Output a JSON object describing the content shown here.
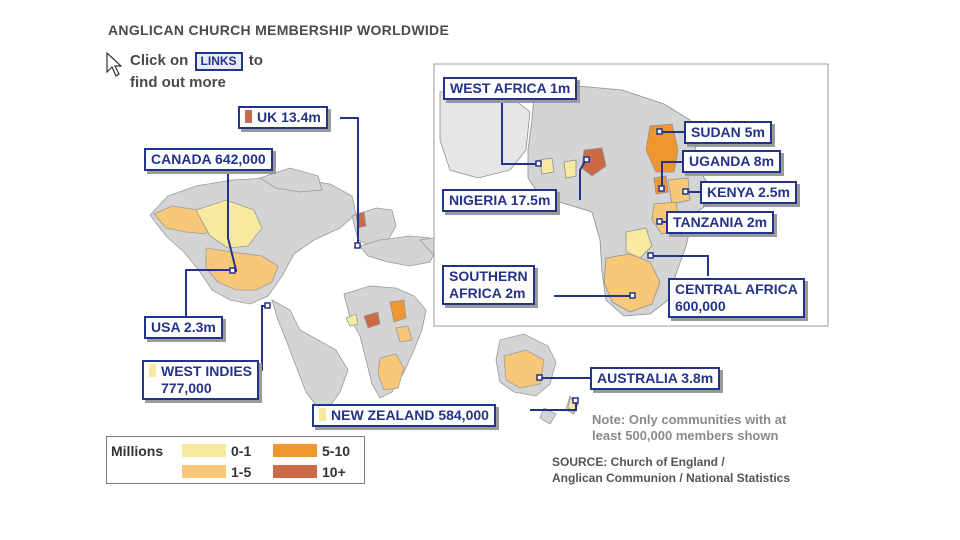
{
  "title": "ANGLICAN CHURCH MEMBERSHIP WORLDWIDE",
  "instructions": {
    "prefix": "Click on",
    "links_label": "LINKS",
    "suffix_line1": "to",
    "line2": "find out more"
  },
  "labels": {
    "uk": "UK 13.4m",
    "canada": "CANADA 642,000",
    "usa": "USA 2.3m",
    "west_indies_1": "WEST INDIES",
    "west_indies_2": "777,000",
    "new_zealand": "NEW ZEALAND 584,000",
    "australia": "AUSTRALIA 3.8m",
    "west_africa": "WEST AFRICA 1m",
    "nigeria": "NIGERIA 17.5m",
    "southern_africa_1": "SOUTHERN",
    "southern_africa_2": "AFRICA 2m",
    "sudan": "SUDAN 5m",
    "uganda": "UGANDA 8m",
    "kenya": "KENYA 2.5m",
    "tanzania": "TANZANIA 2m",
    "central_africa_1": "CENTRAL AFRICA",
    "central_africa_2": "600,000"
  },
  "note": {
    "line1": "Note: Only communities with at",
    "line2": "least 500,000 members shown"
  },
  "source": {
    "line1": "SOURCE: Church of England /",
    "line2": "Anglican Communion / National Statistics"
  },
  "legend": {
    "title": "Millions",
    "items": [
      {
        "label": "0-1",
        "color": "#f8e9a0"
      },
      {
        "label": "1-5",
        "color": "#f8c878"
      },
      {
        "label": "5-10",
        "color": "#f0962e"
      },
      {
        "label": "10+",
        "color": "#cc6a48"
      }
    ]
  },
  "colors": {
    "label_border": "#23338a",
    "land": "#d4d4d4",
    "country_border": "#9a9a9a"
  }
}
